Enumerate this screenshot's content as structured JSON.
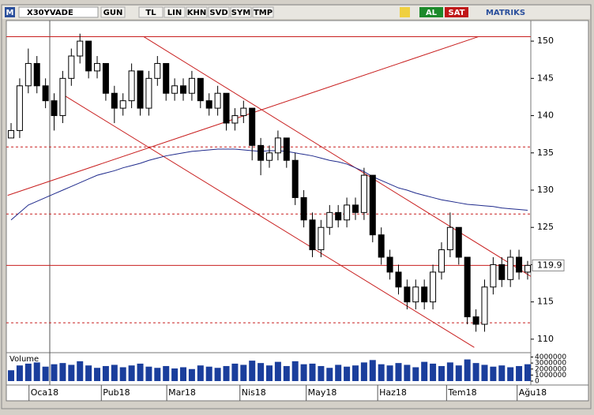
{
  "toolbar": {
    "logo": "M",
    "symbol": "X30YVADE",
    "buttons": [
      "GUN",
      "TL",
      "LIN",
      "KHN",
      "SVD",
      "SYM",
      "TMP"
    ],
    "buy": "AL",
    "sell": "SAT",
    "brand": "MATRIKS"
  },
  "chart_data": {
    "type": "candlestick",
    "xlim": [
      -0.37,
      60.37
    ],
    "xticks": [
      {
        "value": 3,
        "label": "Oca18"
      },
      {
        "value": 11.4,
        "label": "Pub18"
      },
      {
        "value": 19,
        "label": "Mar18"
      },
      {
        "value": 27.5,
        "label": "Nis18"
      },
      {
        "value": 35.2,
        "label": "May18"
      },
      {
        "value": 43.5,
        "label": "Haz18"
      },
      {
        "value": 51.5,
        "label": "Tem18"
      },
      {
        "value": 59.7,
        "label": "Ağu18"
      }
    ],
    "ylim": [
      108.4,
      153.4
    ],
    "yticks": [
      110,
      115,
      120,
      125,
      130,
      135,
      140,
      145,
      150
    ],
    "last_price": 119.9,
    "up_color": "#ffffff",
    "down_color": "#000000",
    "ohlc": [
      [
        137,
        139,
        137,
        138
      ],
      [
        138,
        145,
        137,
        144
      ],
      [
        144,
        149,
        143,
        147
      ],
      [
        147,
        148,
        143,
        144
      ],
      [
        144,
        145,
        141,
        142
      ],
      [
        142,
        143,
        138,
        140
      ],
      [
        140,
        146,
        139,
        145
      ],
      [
        145,
        149,
        144,
        148
      ],
      [
        148,
        151,
        147,
        150
      ],
      [
        150,
        150,
        145,
        146
      ],
      [
        146,
        148,
        145,
        147
      ],
      [
        147,
        147,
        142,
        143
      ],
      [
        143,
        144,
        139,
        141
      ],
      [
        141,
        143,
        140,
        142
      ],
      [
        142,
        147,
        141,
        146
      ],
      [
        146,
        146,
        140,
        141
      ],
      [
        141,
        146,
        140,
        145
      ],
      [
        145,
        148,
        144,
        147
      ],
      [
        147,
        147,
        142,
        143
      ],
      [
        143,
        145,
        142,
        144
      ],
      [
        144,
        145,
        142,
        143
      ],
      [
        143,
        146,
        142,
        145
      ],
      [
        145,
        145,
        141,
        142
      ],
      [
        142,
        143,
        140,
        141
      ],
      [
        141,
        144,
        140,
        143
      ],
      [
        143,
        143,
        138,
        139
      ],
      [
        139,
        141,
        138,
        140
      ],
      [
        140,
        142,
        139,
        141
      ],
      [
        141,
        141,
        134,
        136
      ],
      [
        136,
        137,
        132,
        134
      ],
      [
        134,
        136,
        133,
        135
      ],
      [
        135,
        138,
        134,
        137
      ],
      [
        137,
        137,
        133,
        134
      ],
      [
        134,
        135,
        128,
        129
      ],
      [
        129,
        130,
        125,
        126
      ],
      [
        126,
        127,
        121,
        122
      ],
      [
        122,
        126,
        121,
        125
      ],
      [
        125,
        128,
        124,
        127
      ],
      [
        127,
        128,
        125,
        126
      ],
      [
        126,
        129,
        125,
        128
      ],
      [
        128,
        129,
        126,
        127
      ],
      [
        127,
        133,
        126,
        132
      ],
      [
        132,
        132,
        123,
        124
      ],
      [
        124,
        125,
        120,
        121
      ],
      [
        121,
        122,
        118,
        119
      ],
      [
        119,
        120,
        116,
        117
      ],
      [
        117,
        118,
        114,
        115
      ],
      [
        115,
        118,
        114,
        117
      ],
      [
        117,
        118,
        114,
        115
      ],
      [
        115,
        120,
        114,
        119
      ],
      [
        119,
        123,
        118,
        122
      ],
      [
        122,
        127,
        121,
        125
      ],
      [
        125,
        125,
        120,
        121
      ],
      [
        121,
        121,
        112,
        113
      ],
      [
        113,
        114,
        111,
        112
      ],
      [
        112,
        118,
        111,
        117
      ],
      [
        117,
        121,
        116,
        120
      ],
      [
        120,
        121,
        117,
        118
      ],
      [
        118,
        122,
        117,
        121
      ],
      [
        121,
        122,
        118,
        119
      ],
      [
        119,
        120.5,
        118,
        119.9
      ]
    ],
    "ma": {
      "color": "#1f2a8c",
      "values": [
        126,
        127,
        128,
        128.5,
        129,
        129.5,
        130,
        130.5,
        131,
        131.5,
        132,
        132.3,
        132.6,
        133,
        133.3,
        133.6,
        134,
        134.3,
        134.6,
        134.8,
        135,
        135.2,
        135.3,
        135.4,
        135.5,
        135.5,
        135.5,
        135.4,
        135.3,
        135.2,
        135.3,
        135.3,
        135.2,
        135,
        134.8,
        134.6,
        134.3,
        134,
        133.8,
        133.5,
        133,
        132.5,
        131.8,
        131.3,
        130.8,
        130.3,
        130,
        129.6,
        129.3,
        129,
        128.7,
        128.5,
        128.3,
        128.1,
        128,
        127.9,
        127.8,
        127.6,
        127.5,
        127.4,
        127.3
      ]
    },
    "lines": {
      "color": "#c81e1e",
      "horizontal": [
        150.6,
        119.9
      ],
      "dashed": [
        135.8,
        126.8,
        112.2
      ],
      "diagonal": [
        [
          [
            15.4,
            150.6
          ],
          [
            61.1,
            117.9
          ]
        ],
        [
          [
            6.05,
            142.8
          ],
          [
            53.8,
            108.9
          ]
        ],
        [
          [
            -0.4,
            129.3
          ],
          [
            54.3,
            150.6
          ]
        ]
      ]
    },
    "volume": {
      "label": "Volume",
      "color": "#1a3e9c",
      "ylim": [
        0,
        4200000
      ],
      "yticks": [
        0,
        1000000,
        2000000,
        3000000,
        4000000
      ],
      "values": [
        1800000,
        2600000,
        2900000,
        3100000,
        2400000,
        2800000,
        3000000,
        2700000,
        3300000,
        2600000,
        2200000,
        2500000,
        2700000,
        2300000,
        2600000,
        2900000,
        2400000,
        2200000,
        2500000,
        2100000,
        2300000,
        2000000,
        2600000,
        2400000,
        2200000,
        2500000,
        2900000,
        2700000,
        3400000,
        3000000,
        2600000,
        3200000,
        2500000,
        3300000,
        2800000,
        2900000,
        2500000,
        2200000,
        2700000,
        2400000,
        2600000,
        3100000,
        3500000,
        2800000,
        2600000,
        3000000,
        2700000,
        2300000,
        3200000,
        2900000,
        2500000,
        3100000,
        2600000,
        3600000,
        3000000,
        2700000,
        2400000,
        2600000,
        2300000,
        2500000,
        2800000
      ]
    }
  }
}
